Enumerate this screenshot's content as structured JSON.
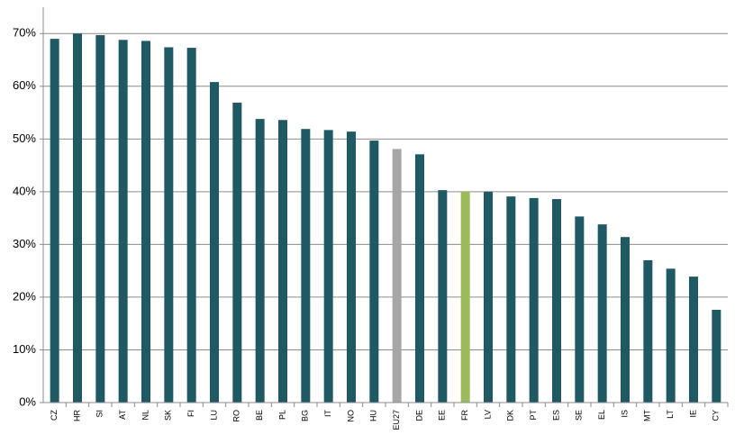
{
  "chart_data": {
    "type": "bar",
    "categories": [
      "CZ",
      "HR",
      "SI",
      "AT",
      "NL",
      "SK",
      "FI",
      "LU",
      "RO",
      "BE",
      "PL",
      "BG",
      "IT",
      "NO",
      "HU",
      "EU27",
      "DE",
      "EE",
      "FR",
      "LV",
      "DK",
      "PT",
      "ES",
      "SE",
      "EL",
      "IS",
      "MT",
      "LT",
      "IE",
      "CY"
    ],
    "values": [
      69.0,
      70.0,
      69.7,
      68.8,
      68.6,
      67.4,
      67.3,
      60.8,
      56.9,
      53.8,
      53.6,
      51.9,
      51.7,
      51.4,
      49.7,
      48.1,
      47.1,
      40.3,
      40.0,
      40.0,
      39.1,
      38.8,
      38.6,
      35.3,
      33.8,
      31.4,
      27.0,
      25.4,
      23.9,
      17.6
    ],
    "colors": [
      "#1f5964",
      "#1f5964",
      "#1f5964",
      "#1f5964",
      "#1f5964",
      "#1f5964",
      "#1f5964",
      "#1f5964",
      "#1f5964",
      "#1f5964",
      "#1f5964",
      "#1f5964",
      "#1f5964",
      "#1f5964",
      "#1f5964",
      "#a6a6a6",
      "#1f5964",
      "#1f5964",
      "#9bbb59",
      "#1f5964",
      "#1f5964",
      "#1f5964",
      "#1f5964",
      "#1f5964",
      "#1f5964",
      "#1f5964",
      "#1f5964",
      "#1f5964",
      "#1f5964",
      "#1f5964"
    ],
    "ylim": [
      0,
      75
    ],
    "yticks": [
      {
        "value": 0,
        "label": "0%"
      },
      {
        "value": 10,
        "label": "10%"
      },
      {
        "value": 20,
        "label": "20%"
      },
      {
        "value": 30,
        "label": "30%"
      },
      {
        "value": 40,
        "label": "40%"
      },
      {
        "value": 50,
        "label": "50%"
      },
      {
        "value": 60,
        "label": "60%"
      },
      {
        "value": 70,
        "label": "70%"
      }
    ],
    "grid": true
  }
}
